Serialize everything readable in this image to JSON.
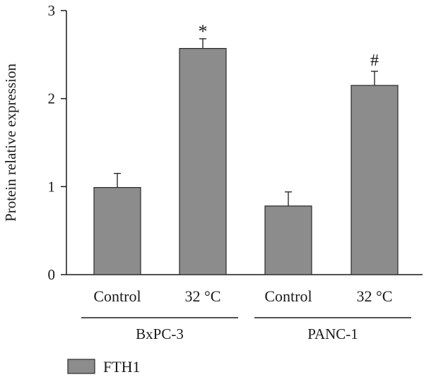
{
  "chart_data": {
    "type": "bar",
    "ylabel": "Protein relative expression",
    "ylim": [
      0,
      3
    ],
    "yticks": [
      0,
      1,
      2,
      3
    ],
    "categories": [
      "Control",
      "32 °C",
      "Control",
      "32 °C"
    ],
    "groups": [
      {
        "label": "BxPC-3",
        "categories": [
          "Control",
          "32 °C"
        ]
      },
      {
        "label": "PANC-1",
        "categories": [
          "Control",
          "32 °C"
        ]
      }
    ],
    "series": [
      {
        "name": "FTH1",
        "values": [
          0.99,
          2.57,
          0.78,
          2.15
        ],
        "errors": [
          0.16,
          0.11,
          0.16,
          0.16
        ],
        "color": "#8c8c8c"
      }
    ],
    "annotations": [
      "",
      "*",
      "",
      "#"
    ],
    "legend_position": "bottom-left"
  }
}
